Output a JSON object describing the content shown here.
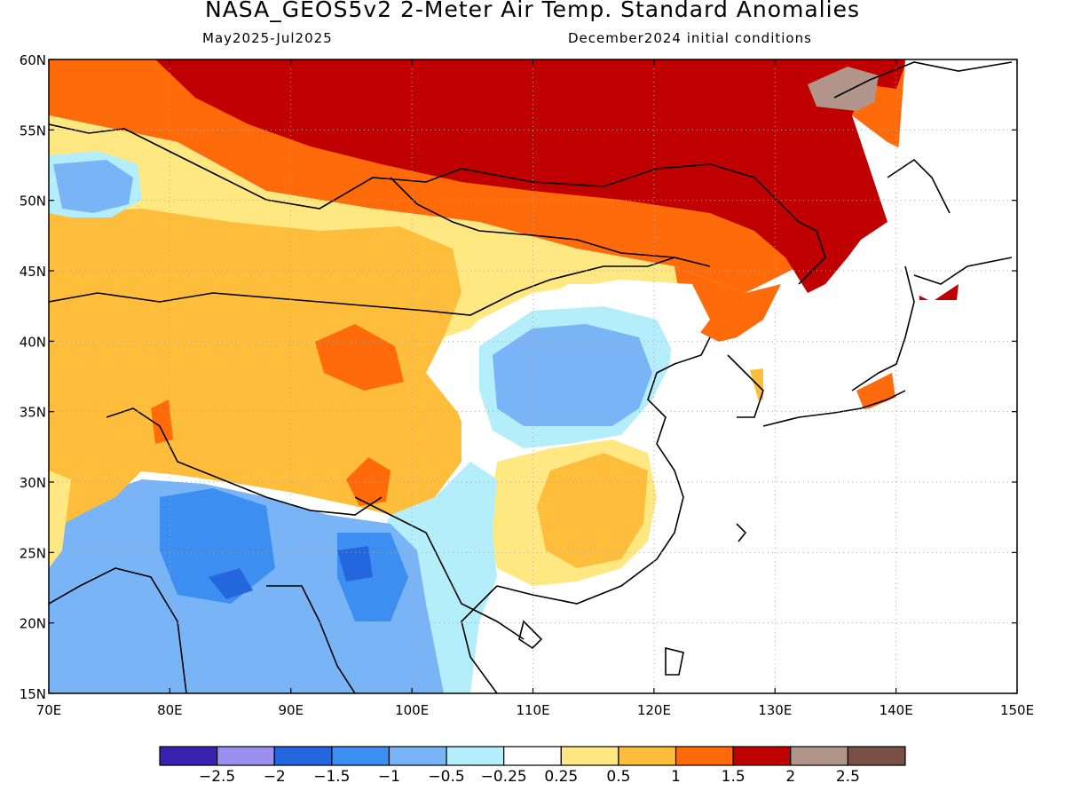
{
  "title": "NASA_GEOS5v2 2-Meter Air Temp. Standard Anomalies",
  "subtitle_left": "May2025-Jul2025",
  "subtitle_right": "December2024 initial conditions",
  "map": {
    "lon_range": [
      70,
      150
    ],
    "lat_range": [
      15,
      60
    ],
    "lon_ticks": [
      "70E",
      "80E",
      "90E",
      "100E",
      "110E",
      "120E",
      "130E",
      "140E",
      "150E"
    ],
    "lat_ticks": [
      "60N",
      "55N",
      "50N",
      "45N",
      "40N",
      "35N",
      "30N",
      "25N",
      "20N",
      "15N"
    ]
  },
  "colorbar": {
    "labels": [
      "-2.5",
      "-2",
      "-1.5",
      "-1",
      "-0.5",
      "-0.25",
      "0.25",
      "0.5",
      "1",
      "1.5",
      "2",
      "2.5"
    ],
    "colors": [
      "#3a22b0",
      "#9b90f0",
      "#2466dd",
      "#3c8ff0",
      "#78b4f6",
      "#b4eefa",
      "#ffffff",
      "#ffe882",
      "#ffbd3c",
      "#ff6a0a",
      "#c00000",
      "#b2958a",
      "#785046"
    ]
  }
}
